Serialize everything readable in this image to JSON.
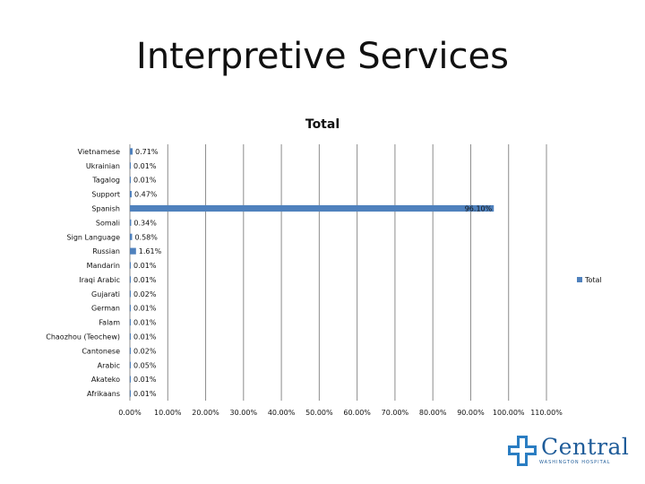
{
  "slide": {
    "title": "Interpretive Services"
  },
  "logo": {
    "name": "Central",
    "subtitle": "WASHINGTON HOSPITAL"
  },
  "colors": {
    "bar": "#4f81bd",
    "grid": "#8c8c8c",
    "text": "#111111"
  },
  "chart_data": {
    "type": "bar",
    "orientation": "horizontal",
    "title": "Total",
    "categories": [
      "Vietnamese",
      "Ukrainian",
      "Tagalog",
      "Support",
      "Spanish",
      "Somali",
      "Sign Language",
      "Russian",
      "Mandarin",
      "Iraqi Arabic",
      "Gujarati",
      "German",
      "Falam",
      "Chaozhou (Teochew)",
      "Cantonese",
      "Arabic",
      "Akateko",
      "Afrikaans"
    ],
    "series": [
      {
        "name": "Total",
        "values": [
          0.71,
          0.01,
          0.01,
          0.47,
          96.1,
          0.34,
          0.58,
          1.61,
          0.01,
          0.01,
          0.02,
          0.01,
          0.01,
          0.01,
          0.02,
          0.05,
          0.01,
          0.01
        ],
        "labels": [
          "0.71%",
          "0.01%",
          "0.01%",
          "0.47%",
          "96.10%",
          "0.34%",
          "0.58%",
          "1.61%",
          "0.01%",
          "0.01%",
          "0.02%",
          "0.01%",
          "0.01%",
          "0.01%",
          "0.02%",
          "0.05%",
          "0.01%",
          "0.01%"
        ]
      }
    ],
    "xlim": [
      0,
      110
    ],
    "xticks": [
      "0.00%",
      "10.00%",
      "20.00%",
      "30.00%",
      "40.00%",
      "50.00%",
      "60.00%",
      "70.00%",
      "80.00%",
      "90.00%",
      "100.00%",
      "110.00%"
    ],
    "grid": "vertical",
    "legend": "right"
  }
}
